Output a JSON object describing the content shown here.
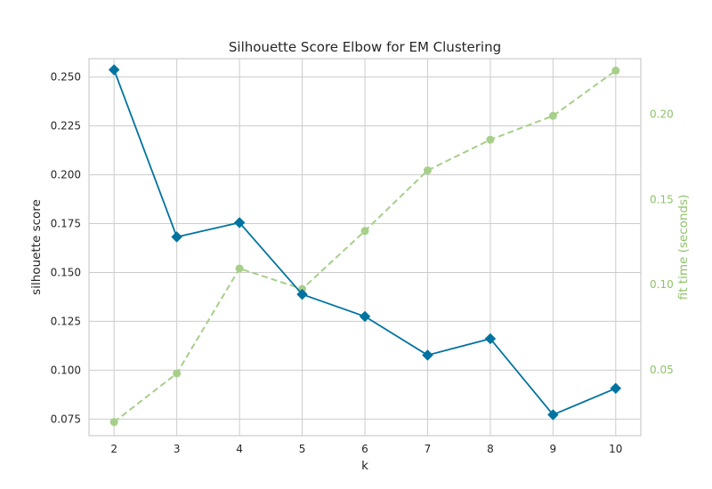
{
  "chart_data": {
    "type": "line",
    "title": "Silhouette Score Elbow for EM Clustering",
    "xlabel": "k",
    "ylabel": "silhouette score",
    "y2label": "fit time (seconds)",
    "x": [
      2,
      3,
      4,
      5,
      6,
      7,
      8,
      9,
      10
    ],
    "xlim": [
      1.6,
      10.4
    ],
    "ylim": [
      0.0665,
      0.2594
    ],
    "y2lim": [
      0.0115,
      0.2325
    ],
    "yticks": [
      0.075,
      0.1,
      0.125,
      0.15,
      0.175,
      0.2,
      0.225,
      0.25
    ],
    "ytick_labels": [
      "0.075",
      "0.100",
      "0.125",
      "0.150",
      "0.175",
      "0.200",
      "0.225",
      "0.250"
    ],
    "y2ticks": [
      0.05,
      0.1,
      0.15,
      0.2
    ],
    "y2tick_labels": [
      "0.05",
      "0.10",
      "0.15",
      "0.20"
    ],
    "grid": true,
    "series": [
      {
        "values": [
          0.2537,
          0.1682,
          0.1755,
          0.1388,
          0.1275,
          0.1077,
          0.1161,
          0.0772,
          0.0907
        ],
        "axis": "left",
        "color": "#0173a0",
        "marker": "diamond",
        "style": "solid"
      },
      {
        "values": [
          0.0195,
          0.048,
          0.1095,
          0.0975,
          0.1315,
          0.167,
          0.185,
          0.199,
          0.2255
        ],
        "axis": "right",
        "color": "#a6cf8a",
        "marker": "circle",
        "style": "dashed"
      }
    ],
    "colors": {
      "axis_right_text": "#8fc269",
      "grid": "#cccccc",
      "spine": "#cccccc"
    }
  }
}
